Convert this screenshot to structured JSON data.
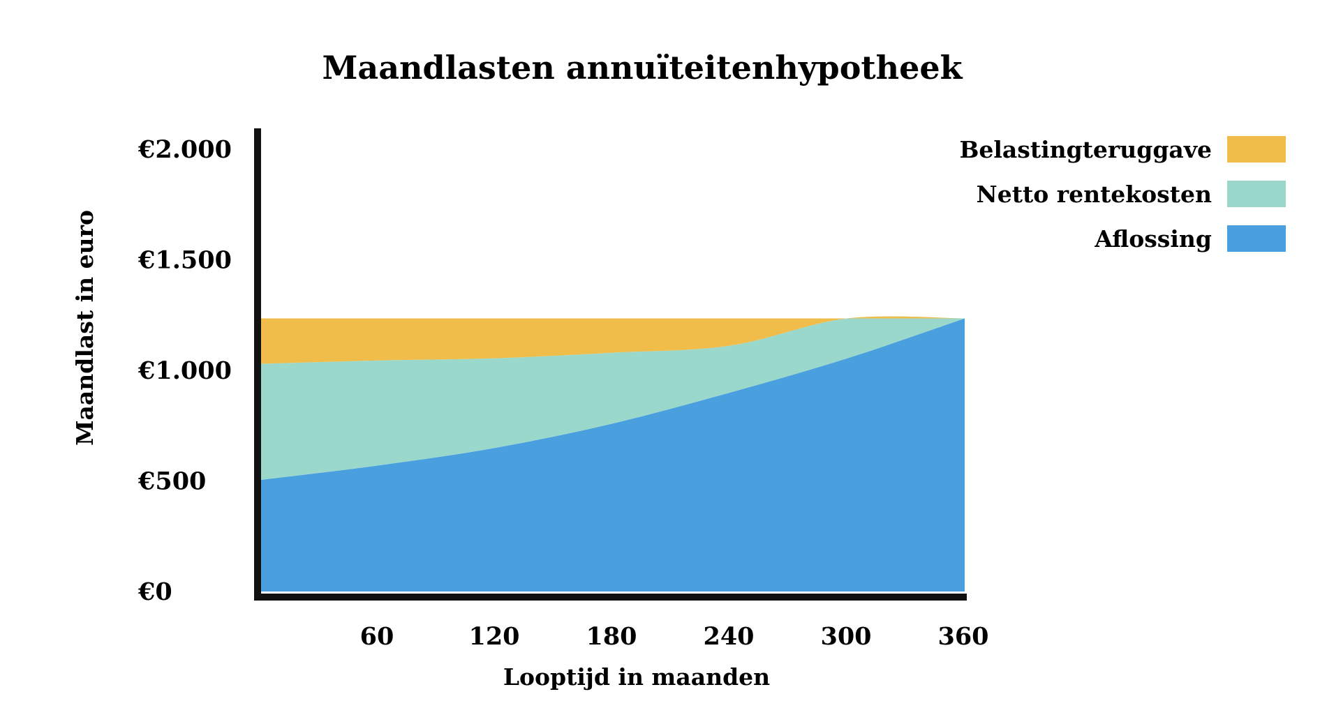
{
  "chart_data": {
    "type": "area",
    "stacked": true,
    "title": "Maandlasten annuïteitenhypotheek",
    "xlabel": "Looptijd in maanden",
    "ylabel": "Maandlast in euro",
    "xlim": [
      0,
      360
    ],
    "ylim": [
      0,
      2000
    ],
    "x_ticks": [
      60,
      120,
      180,
      240,
      300,
      360
    ],
    "x_tick_labels": [
      "60",
      "120",
      "180",
      "240",
      "300",
      "360"
    ],
    "y_ticks": [
      0,
      500,
      1000,
      1500,
      2000
    ],
    "y_tick_labels": [
      "€0",
      "€500",
      "€1.000",
      "€1.500",
      "€2.000"
    ],
    "legend_position": "top-right",
    "x": [
      0,
      60,
      120,
      180,
      240,
      300,
      360
    ],
    "series": [
      {
        "name": "Aflossing",
        "color": "#4a9fdf",
        "values": [
          505,
          570,
          650,
          760,
          900,
          1055,
          1235
        ]
      },
      {
        "name": "Netto rentekosten",
        "color": "#9bd8cc",
        "values": [
          525,
          475,
          405,
          320,
          212,
          180,
          0
        ]
      },
      {
        "name": "Belastingteruggave",
        "color": "#f0bd4a",
        "values": [
          205,
          190,
          180,
          155,
          123,
          0,
          0
        ]
      }
    ]
  }
}
